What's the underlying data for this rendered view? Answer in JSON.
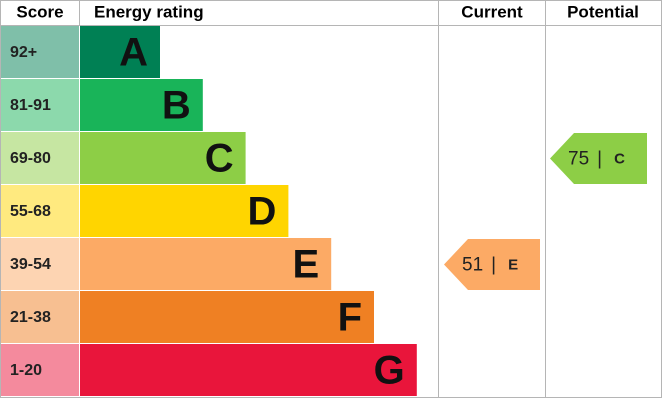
{
  "header": {
    "score": "Score",
    "rating": "Energy rating",
    "current": "Current",
    "potential": "Potential"
  },
  "bands": [
    {
      "score": "92+",
      "letter": "A",
      "color": "#008054",
      "tint": "#7fbfa9"
    },
    {
      "score": "81-91",
      "letter": "B",
      "color": "#19b459",
      "tint": "#8cd9ac"
    },
    {
      "score": "69-80",
      "letter": "C",
      "color": "#8dce46",
      "tint": "#c6e6a2"
    },
    {
      "score": "55-68",
      "letter": "D",
      "color": "#ffd500",
      "tint": "#ffea7f"
    },
    {
      "score": "39-54",
      "letter": "E",
      "color": "#fcaa65",
      "tint": "#fdd4b2"
    },
    {
      "score": "21-38",
      "letter": "F",
      "color": "#ef8023",
      "tint": "#f7bf91"
    },
    {
      "score": "1-20",
      "letter": "G",
      "color": "#e9153b",
      "tint": "#f48a9d"
    }
  ],
  "separator": "|",
  "current": {
    "value": 51,
    "letter": "E"
  },
  "potential": {
    "value": 75,
    "letter": "C"
  }
}
